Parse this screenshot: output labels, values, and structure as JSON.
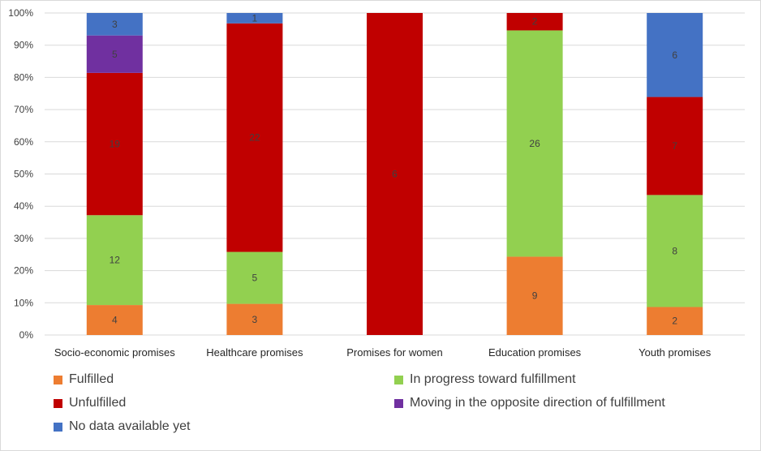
{
  "chart_data": {
    "type": "bar",
    "stacked": "percent",
    "categories": [
      "Socio-economic promises",
      "Healthcare promises",
      "Promises for women",
      "Education promises",
      "Youth promises"
    ],
    "series": [
      {
        "name": "Fulfilled",
        "color": "#ED7D31",
        "values": [
          4,
          3,
          0,
          9,
          2
        ]
      },
      {
        "name": "In progress toward fulfillment",
        "color": "#92D050",
        "values": [
          12,
          5,
          0,
          26,
          8
        ]
      },
      {
        "name": "Unfulfilled",
        "color": "#C00000",
        "values": [
          19,
          22,
          6,
          2,
          7
        ]
      },
      {
        "name": "Moving in the opposite direction of fulfillment",
        "color": "#7030A0",
        "values": [
          5,
          0,
          0,
          0,
          0
        ]
      },
      {
        "name": "No data available yet",
        "color": "#4472C4",
        "values": [
          3,
          1,
          0,
          0,
          6
        ]
      }
    ],
    "yticks": [
      "0%",
      "10%",
      "20%",
      "30%",
      "40%",
      "50%",
      "60%",
      "70%",
      "80%",
      "90%",
      "100%"
    ],
    "ylim": [
      0,
      100
    ],
    "grid": true,
    "legend_position": "bottom"
  }
}
